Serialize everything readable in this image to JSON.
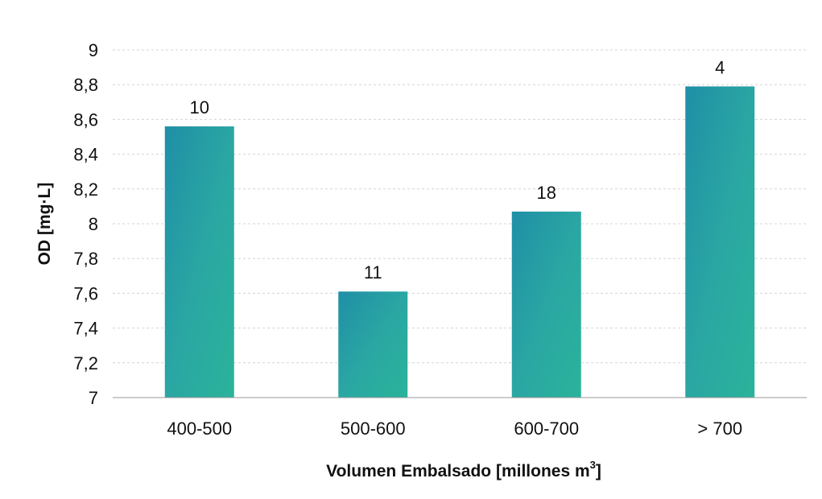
{
  "chart_data": {
    "type": "bar",
    "title": "",
    "xlabel": "Volumen Embalsado [millones m",
    "xlabel_sup": "3",
    "xlabel_end": "]",
    "ylabel": "OD [mg·L]",
    "categories": [
      "400-500",
      "500-600",
      "600-700",
      "> 700"
    ],
    "values": [
      8.56,
      7.61,
      8.07,
      8.79
    ],
    "data_labels": [
      "10",
      "11",
      "18",
      "4"
    ],
    "ylim": [
      7,
      9
    ],
    "yticks": [
      "7",
      "7,2",
      "7,4",
      "7,6",
      "7,8",
      "8",
      "8,2",
      "8,4",
      "8,6",
      "8,8",
      "9"
    ],
    "grid": true,
    "legend": "none",
    "colors": {
      "bar": "#1e9aa2",
      "bar_light": "#2fb39f"
    }
  }
}
